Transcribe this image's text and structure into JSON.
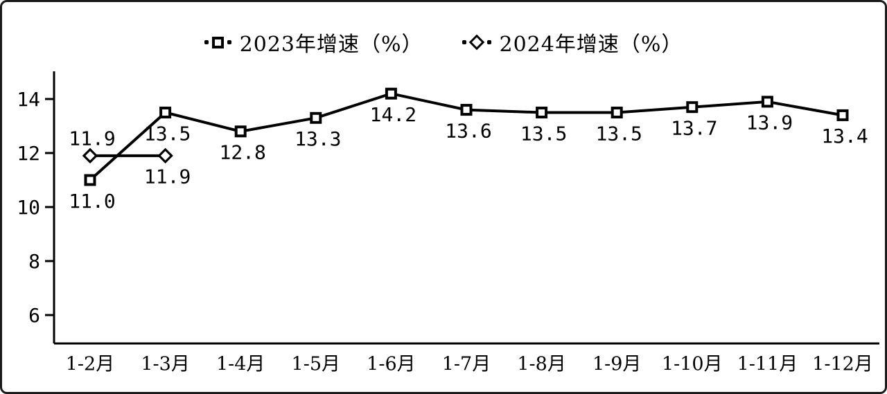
{
  "chart_data": {
    "type": "line",
    "title": "",
    "xlabel": "",
    "ylabel": "",
    "grid": false,
    "legend_position": "top-center",
    "background_color": "#ffffff",
    "border_color": "#1a1a1a",
    "line_color": "#000000",
    "ylim": [
      5,
      15
    ],
    "yticks": [
      14,
      12,
      10,
      8,
      6
    ],
    "categories": [
      "1-2月",
      "1-3月",
      "1-4月",
      "1-5月",
      "1-6月",
      "1-7月",
      "1-8月",
      "1-9月",
      "1-10月",
      "1-11月",
      "1-12月"
    ],
    "series": [
      {
        "name": "2023年增速（%）",
        "marker": "square",
        "values": [
          11.0,
          13.5,
          12.8,
          13.3,
          14.2,
          13.6,
          13.5,
          13.5,
          13.7,
          13.9,
          13.4
        ],
        "labels": [
          "11.0",
          "13.5",
          "12.8",
          "13.3",
          "14.2",
          "13.6",
          "13.5",
          "13.5",
          "13.7",
          "13.9",
          "13.4"
        ],
        "label_positions": [
          "below",
          "below",
          "below",
          "below",
          "below",
          "below",
          "below",
          "below",
          "below",
          "below",
          "below"
        ]
      },
      {
        "name": "2024年增速（%）",
        "marker": "diamond",
        "values": [
          11.9,
          11.9
        ],
        "labels": [
          "11.9",
          "11.9"
        ],
        "label_positions": [
          "above",
          "below"
        ]
      }
    ]
  }
}
